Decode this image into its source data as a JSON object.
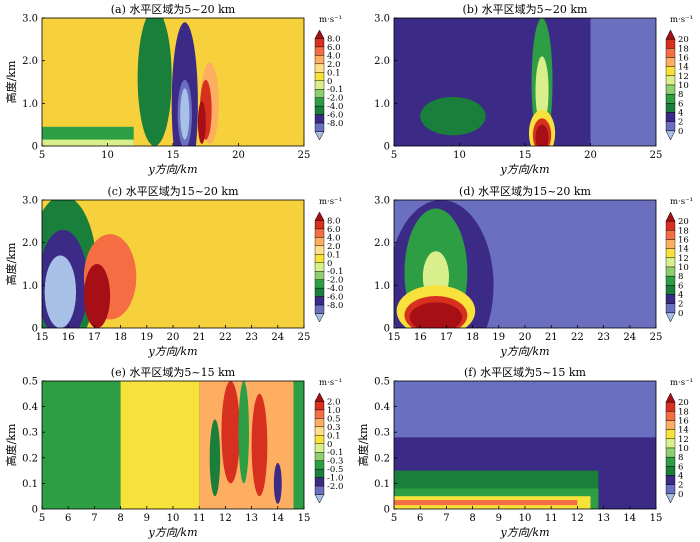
{
  "figure": {
    "colorbar_unit": "m·s⁻¹"
  },
  "chart_data": [
    {
      "id": "a",
      "type": "heatmap",
      "title": "(a) 水平区域为5~20 km",
      "xlabel": "y方向/km",
      "ylabel": "高度/km",
      "xlim": [
        5,
        25
      ],
      "ylim": [
        0,
        3.0
      ],
      "xticks": [
        "5",
        "10",
        "15",
        "20",
        "25"
      ],
      "yticks": [
        "0",
        "1.0",
        "2.0",
        "3.0"
      ],
      "colorbar": {
        "labels": [
          "8.0",
          "6.0",
          "4.0",
          "2.0",
          "0.1",
          "0",
          "-0.1",
          "-2.0",
          "-4.0",
          "-6.0",
          "-8.0"
        ],
        "colors": [
          "#a50f15",
          "#d7301f",
          "#f46d43",
          "#fdae61",
          "#fee08b",
          "#f7e13b",
          "#d9ef8b",
          "#8fce6f",
          "#2e9e44",
          "#1a7f3a",
          "#3b2a86",
          "#6a6fc0",
          "#a9c1e6"
        ]
      },
      "background": "#f7d13b",
      "features": [
        {
          "kind": "blob",
          "x": 15.9,
          "y": 1.0,
          "rx": 1.0,
          "ry": 1.9,
          "color": "#3b2a86"
        },
        {
          "kind": "blob",
          "x": 15.9,
          "y": 0.75,
          "rx": 0.55,
          "ry": 0.8,
          "color": "#6a6fc0"
        },
        {
          "kind": "blob",
          "x": 15.9,
          "y": 0.75,
          "rx": 0.35,
          "ry": 0.6,
          "color": "#a9c1e6"
        },
        {
          "kind": "blob",
          "x": 13.6,
          "y": 1.6,
          "rx": 1.3,
          "ry": 1.6,
          "color": "#1a7f3a"
        },
        {
          "kind": "blob",
          "x": 17.8,
          "y": 1.0,
          "rx": 0.7,
          "ry": 0.95,
          "color": "#fdae61"
        },
        {
          "kind": "blob",
          "x": 17.5,
          "y": 0.85,
          "rx": 0.45,
          "ry": 0.7,
          "color": "#d7301f"
        },
        {
          "kind": "blob",
          "x": 17.2,
          "y": 0.55,
          "rx": 0.3,
          "ry": 0.5,
          "color": "#a50f15"
        },
        {
          "kind": "band",
          "x0": 5,
          "x1": 12,
          "y0": 0.0,
          "y1": 0.45,
          "color": "#2e9e44"
        },
        {
          "kind": "band",
          "x0": 5,
          "x1": 12,
          "y0": 0.0,
          "y1": 0.15,
          "color": "#d9ef8b"
        }
      ]
    },
    {
      "id": "b",
      "type": "heatmap",
      "title": "(b) 水平区域为5~20 km",
      "xlabel": "y方向/km",
      "ylabel": "",
      "xlim": [
        5,
        25
      ],
      "ylim": [
        0,
        3.0
      ],
      "xticks": [
        "5",
        "10",
        "15",
        "20",
        "25"
      ],
      "yticks": [
        "0",
        "1.0",
        "2.0",
        "3.0"
      ],
      "colorbar": {
        "labels": [
          "20",
          "18",
          "16",
          "14",
          "12",
          "10",
          "8",
          "6",
          "4",
          "2",
          "0"
        ],
        "colors": [
          "#a50f15",
          "#d7301f",
          "#f46d43",
          "#fdae61",
          "#f7e13b",
          "#d9ef8b",
          "#8fce6f",
          "#2e9e44",
          "#1a7f3a",
          "#3b2a86",
          "#6a6fc0",
          "#a9c1e6"
        ]
      },
      "background": "#6a6fc0",
      "features": [
        {
          "kind": "band",
          "x0": 5,
          "x1": 20,
          "y0": 0.0,
          "y1": 3.0,
          "color": "#3b2a86"
        },
        {
          "kind": "blob",
          "x": 9.5,
          "y": 0.7,
          "rx": 2.5,
          "ry": 0.45,
          "color": "#1a7f3a"
        },
        {
          "kind": "blob",
          "x": 16.3,
          "y": 1.5,
          "rx": 0.8,
          "ry": 1.5,
          "color": "#2e9e44"
        },
        {
          "kind": "blob",
          "x": 16.3,
          "y": 1.3,
          "rx": 0.5,
          "ry": 0.8,
          "color": "#d9ef8b"
        },
        {
          "kind": "blob",
          "x": 16.3,
          "y": 0.3,
          "rx": 1.0,
          "ry": 0.55,
          "color": "#f7e13b"
        },
        {
          "kind": "blob",
          "x": 16.3,
          "y": 0.25,
          "rx": 0.7,
          "ry": 0.4,
          "color": "#d7301f"
        },
        {
          "kind": "blob",
          "x": 16.3,
          "y": 0.2,
          "rx": 0.5,
          "ry": 0.3,
          "color": "#a50f15"
        }
      ]
    },
    {
      "id": "c",
      "type": "heatmap",
      "title": "(c) 水平区域为15~20 km",
      "xlabel": "y方向/km",
      "ylabel": "高度/km",
      "xlim": [
        15,
        25
      ],
      "ylim": [
        0,
        3.0
      ],
      "xticks": [
        "15",
        "16",
        "17",
        "18",
        "19",
        "20",
        "21",
        "22",
        "23",
        "24",
        "25"
      ],
      "yticks": [
        "0",
        "1.0",
        "2.0",
        "3.0"
      ],
      "colorbar": {
        "labels": [
          "8.0",
          "6.0",
          "4.0",
          "2.0",
          "0.1",
          "0",
          "-0.1",
          "-2.0",
          "-4.0",
          "-6.0",
          "-8.0"
        ],
        "colors": [
          "#a50f15",
          "#d7301f",
          "#f46d43",
          "#fdae61",
          "#fee08b",
          "#f7e13b",
          "#d9ef8b",
          "#8fce6f",
          "#2e9e44",
          "#1a7f3a",
          "#3b2a86",
          "#6a6fc0",
          "#a9c1e6"
        ]
      },
      "background": "#f7d13b",
      "features": [
        {
          "kind": "blob",
          "x": 15.8,
          "y": 1.3,
          "rx": 1.3,
          "ry": 1.8,
          "color": "#1a7f3a"
        },
        {
          "kind": "blob",
          "x": 15.8,
          "y": 1.0,
          "rx": 0.95,
          "ry": 1.3,
          "color": "#3b2a86"
        },
        {
          "kind": "blob",
          "x": 15.7,
          "y": 0.85,
          "rx": 0.6,
          "ry": 0.85,
          "color": "#a9c1e6"
        },
        {
          "kind": "blob",
          "x": 17.6,
          "y": 1.2,
          "rx": 1.0,
          "ry": 1.0,
          "color": "#f46d43"
        },
        {
          "kind": "blob",
          "x": 17.1,
          "y": 0.75,
          "rx": 0.5,
          "ry": 0.75,
          "color": "#a50f15"
        }
      ]
    },
    {
      "id": "d",
      "type": "heatmap",
      "title": "(d) 水平区域为15~20 km",
      "xlabel": "y方向/km",
      "ylabel": "",
      "xlim": [
        15,
        25
      ],
      "ylim": [
        0,
        3.0
      ],
      "xticks": [
        "15",
        "16",
        "17",
        "18",
        "19",
        "20",
        "21",
        "22",
        "23",
        "24",
        "25"
      ],
      "yticks": [
        "0",
        "1.0",
        "2.0",
        "3.0"
      ],
      "colorbar": {
        "labels": [
          "20",
          "18",
          "16",
          "14",
          "12",
          "10",
          "8",
          "6",
          "4",
          "2",
          "0"
        ],
        "colors": [
          "#a50f15",
          "#d7301f",
          "#f46d43",
          "#fdae61",
          "#f7e13b",
          "#d9ef8b",
          "#8fce6f",
          "#2e9e44",
          "#1a7f3a",
          "#3b2a86",
          "#6a6fc0",
          "#a9c1e6"
        ]
      },
      "background": "#6a6fc0",
      "features": [
        {
          "kind": "blob",
          "x": 16.8,
          "y": 1.0,
          "rx": 2.0,
          "ry": 2.0,
          "color": "#3b2a86"
        },
        {
          "kind": "blob",
          "x": 16.6,
          "y": 1.3,
          "rx": 1.2,
          "ry": 1.5,
          "color": "#2e9e44"
        },
        {
          "kind": "blob",
          "x": 16.6,
          "y": 1.2,
          "rx": 0.5,
          "ry": 0.6,
          "color": "#d9ef8b"
        },
        {
          "kind": "blob",
          "x": 16.6,
          "y": 0.4,
          "rx": 1.5,
          "ry": 0.6,
          "color": "#f7e13b"
        },
        {
          "kind": "blob",
          "x": 16.6,
          "y": 0.3,
          "rx": 1.2,
          "ry": 0.45,
          "color": "#d7301f"
        },
        {
          "kind": "blob",
          "x": 16.6,
          "y": 0.25,
          "rx": 1.0,
          "ry": 0.35,
          "color": "#a50f15"
        }
      ]
    },
    {
      "id": "e",
      "type": "heatmap",
      "title": "(e) 水平区域为5~15 km",
      "xlabel": "y方向/km",
      "ylabel": "高度/km",
      "xlim": [
        5,
        15
      ],
      "ylim": [
        0,
        0.5
      ],
      "xticks": [
        "5",
        "6",
        "7",
        "8",
        "9",
        "10",
        "11",
        "12",
        "13",
        "14",
        "15"
      ],
      "yticks": [
        "0",
        "0.1",
        "0.2",
        "0.3",
        "0.4",
        "0.5"
      ],
      "colorbar": {
        "labels": [
          "2.0",
          "1.0",
          "0.5",
          "0.3",
          "0.1",
          "0",
          "-0.1",
          "-0.3",
          "-0.5",
          "-1.0",
          "-2.0"
        ],
        "colors": [
          "#a50f15",
          "#d7301f",
          "#f46d43",
          "#fdae61",
          "#fee08b",
          "#f7e13b",
          "#d9ef8b",
          "#8fce6f",
          "#2e9e44",
          "#1a7f3a",
          "#3b2a86",
          "#6a6fc0",
          "#a9c1e6"
        ]
      },
      "background": "#2e9e44",
      "features": [
        {
          "kind": "band",
          "x0": 8,
          "x1": 11,
          "y0": 0.0,
          "y1": 0.5,
          "color": "#f7e13b"
        },
        {
          "kind": "band",
          "x0": 11,
          "x1": 14.6,
          "y0": 0.0,
          "y1": 0.5,
          "color": "#fdae61"
        },
        {
          "kind": "blob",
          "x": 12.2,
          "y": 0.3,
          "rx": 0.35,
          "ry": 0.2,
          "color": "#d7301f"
        },
        {
          "kind": "blob",
          "x": 13.3,
          "y": 0.25,
          "rx": 0.3,
          "ry": 0.2,
          "color": "#d7301f"
        },
        {
          "kind": "blob",
          "x": 14.0,
          "y": 0.1,
          "rx": 0.15,
          "ry": 0.08,
          "color": "#3b2a86"
        },
        {
          "kind": "blob",
          "x": 11.6,
          "y": 0.2,
          "rx": 0.2,
          "ry": 0.15,
          "color": "#1a7f3a"
        },
        {
          "kind": "blob",
          "x": 12.7,
          "y": 0.3,
          "rx": 0.2,
          "ry": 0.2,
          "color": "#2e9e44"
        },
        {
          "kind": "band",
          "x0": 14.6,
          "x1": 15,
          "y0": 0.0,
          "y1": 0.5,
          "color": "#2e9e44"
        }
      ]
    },
    {
      "id": "f",
      "type": "heatmap",
      "title": "(f) 水平区域为5~15 km",
      "xlabel": "y方向/km",
      "ylabel": "高度/km",
      "xlim": [
        5,
        15
      ],
      "ylim": [
        0,
        0.5
      ],
      "xticks": [
        "5",
        "6",
        "7",
        "8",
        "9",
        "10",
        "11",
        "12",
        "13",
        "14",
        "15"
      ],
      "yticks": [
        "0",
        "0.1",
        "0.2",
        "0.3",
        "0.4",
        "0.5"
      ],
      "colorbar": {
        "labels": [
          "20",
          "18",
          "16",
          "14",
          "12",
          "10",
          "8",
          "6",
          "4",
          "2",
          "0"
        ],
        "colors": [
          "#a50f15",
          "#d7301f",
          "#f46d43",
          "#fdae61",
          "#f7e13b",
          "#d9ef8b",
          "#8fce6f",
          "#2e9e44",
          "#1a7f3a",
          "#3b2a86",
          "#6a6fc0",
          "#a9c1e6"
        ]
      },
      "background": "#6a6fc0",
      "features": [
        {
          "kind": "band",
          "x0": 5,
          "x1": 15,
          "y0": 0.0,
          "y1": 0.28,
          "color": "#3b2a86"
        },
        {
          "kind": "band",
          "x0": 5,
          "x1": 12.8,
          "y0": 0.0,
          "y1": 0.15,
          "color": "#1a7f3a"
        },
        {
          "kind": "band",
          "x0": 5,
          "x1": 12.8,
          "y0": 0.0,
          "y1": 0.08,
          "color": "#2e9e44"
        },
        {
          "kind": "band",
          "x0": 5,
          "x1": 12.5,
          "y0": 0.0,
          "y1": 0.05,
          "color": "#f7e13b"
        },
        {
          "kind": "band",
          "x0": 5,
          "x1": 12.0,
          "y0": 0.015,
          "y1": 0.035,
          "color": "#f46d43"
        }
      ]
    }
  ]
}
